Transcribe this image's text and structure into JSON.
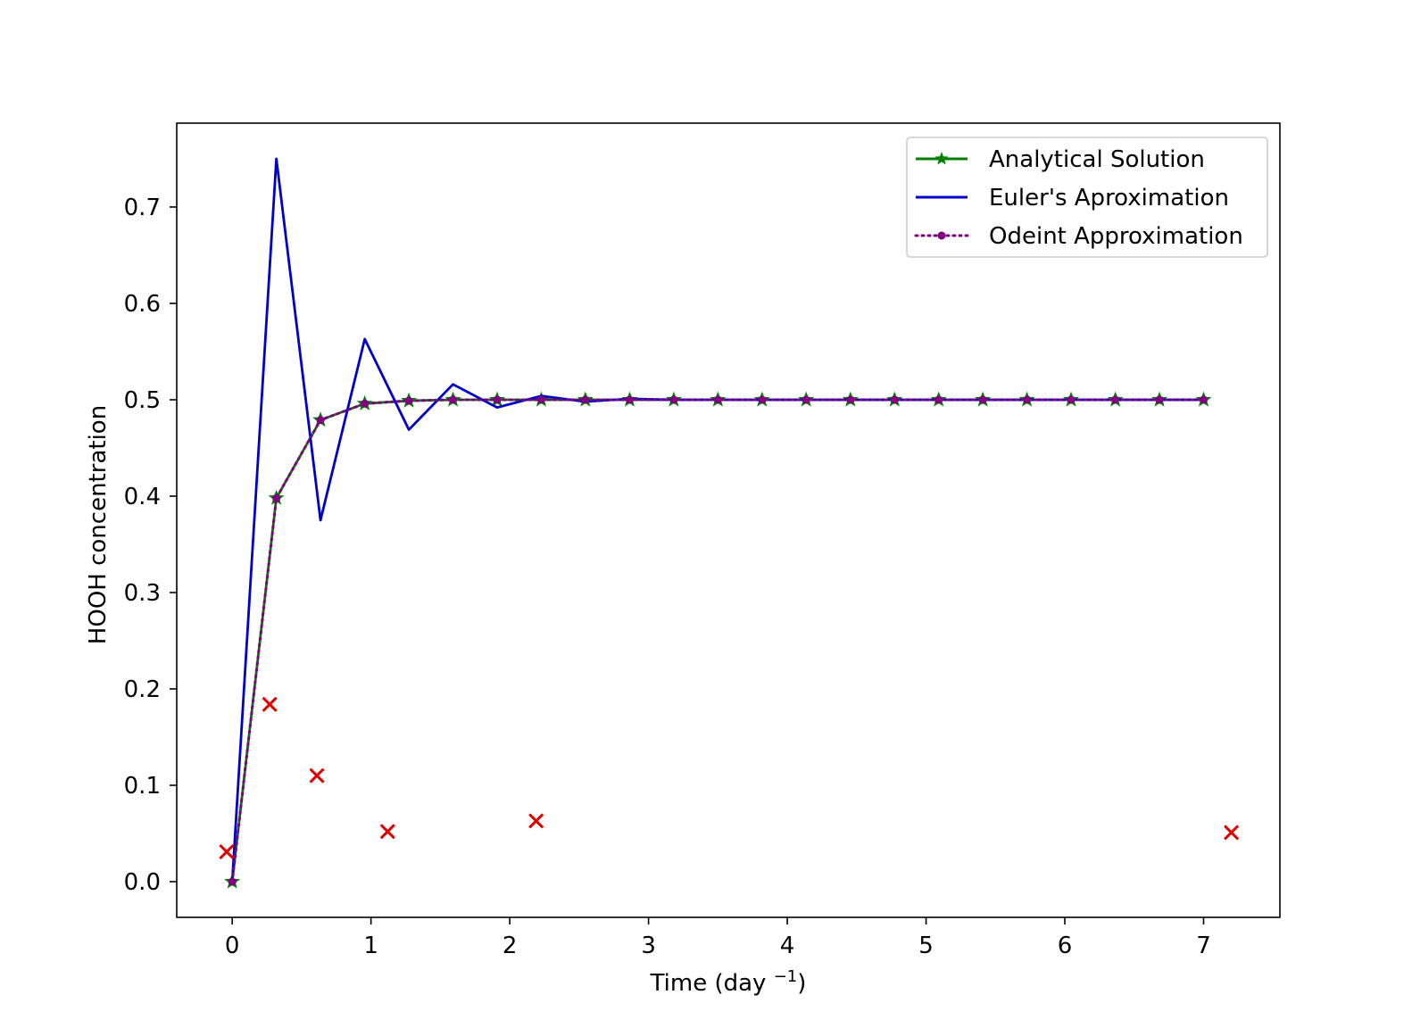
{
  "chart_data": {
    "type": "line",
    "title": "",
    "xlabel": "Time (day",
    "xlabel_sup": "−1",
    "xlabel_close": ")",
    "ylabel": "HOOH concentration",
    "xlim": [
      -0.4,
      7.55
    ],
    "ylim": [
      -0.037,
      0.787
    ],
    "xticks": [
      0,
      1,
      2,
      3,
      4,
      5,
      6,
      7
    ],
    "xtick_labels": [
      "0",
      "1",
      "2",
      "3",
      "4",
      "5",
      "6",
      "7"
    ],
    "yticks": [
      0.0,
      0.1,
      0.2,
      0.3,
      0.4,
      0.5,
      0.6,
      0.7
    ],
    "ytick_labels": [
      "0.0",
      "0.1",
      "0.2",
      "0.3",
      "0.4",
      "0.5",
      "0.6",
      "0.7"
    ],
    "grid": false,
    "legend_position": "top-right",
    "x": [
      0,
      0.318,
      0.636,
      0.955,
      1.273,
      1.591,
      1.909,
      2.227,
      2.545,
      2.864,
      3.182,
      3.5,
      3.818,
      4.136,
      4.455,
      4.773,
      5.091,
      5.409,
      5.727,
      6.045,
      6.364,
      6.682,
      7.0
    ],
    "series": [
      {
        "name": "Analytical Solution",
        "color": "#008000",
        "style": "solid",
        "marker": "star",
        "values": [
          0.0,
          0.398,
          0.479,
          0.496,
          0.499,
          0.5,
          0.5,
          0.5,
          0.5,
          0.5,
          0.5,
          0.5,
          0.5,
          0.5,
          0.5,
          0.5,
          0.5,
          0.5,
          0.5,
          0.5,
          0.5,
          0.5,
          0.5
        ]
      },
      {
        "name": "Euler's Aproximation",
        "color": "#0000cc",
        "style": "solid",
        "marker": "none",
        "values": [
          0.0,
          0.75,
          0.375,
          0.563,
          0.469,
          0.516,
          0.492,
          0.504,
          0.498,
          0.501,
          0.5,
          0.5,
          0.5,
          0.5,
          0.5,
          0.5,
          0.5,
          0.5,
          0.5,
          0.5,
          0.5,
          0.5,
          0.5
        ]
      },
      {
        "name": "Odeint Approximation",
        "color": "#800080",
        "style": "dotted",
        "marker": "dot",
        "values": [
          0.0,
          0.398,
          0.479,
          0.496,
          0.499,
          0.5,
          0.5,
          0.5,
          0.5,
          0.5,
          0.5,
          0.5,
          0.5,
          0.5,
          0.5,
          0.5,
          0.5,
          0.5,
          0.5,
          0.5,
          0.5,
          0.5,
          0.5
        ]
      }
    ],
    "scatter_points": {
      "color": "#e00000",
      "marker": "x",
      "points": [
        {
          "x": -0.04,
          "y": 0.031
        },
        {
          "x": 0.27,
          "y": 0.184
        },
        {
          "x": 0.61,
          "y": 0.11
        },
        {
          "x": 1.12,
          "y": 0.052
        },
        {
          "x": 2.19,
          "y": 0.063
        },
        {
          "x": 7.2,
          "y": 0.051
        }
      ]
    }
  }
}
